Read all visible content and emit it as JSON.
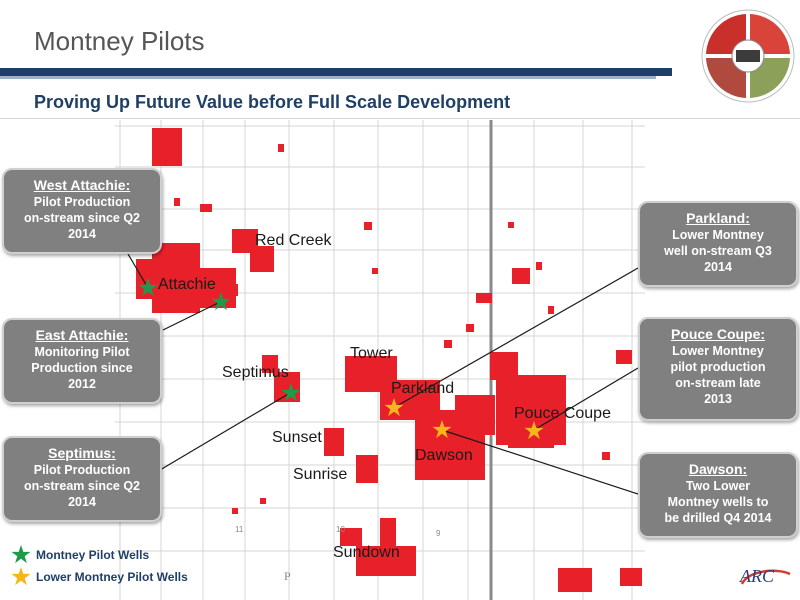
{
  "header": {
    "title": "Montney Pilots",
    "subtitle": "Proving Up Future Value before Full Scale Development"
  },
  "logo_wheel": {
    "colors": [
      "#c9302c",
      "#e8a24b",
      "#8da05a",
      "#b04a3e"
    ]
  },
  "map": {
    "labels": {
      "red_creek": "Red Creek",
      "attachie": "Attachie",
      "septimus": "Septimus",
      "tower": "Tower",
      "parkland": "Parkland",
      "pouce_coupe": "Pouce Coupe",
      "sunset": "Sunset",
      "dawson": "Dawson",
      "sunrise": "Sunrise",
      "sundown": "Sundown"
    },
    "grid_numbers": {
      "n11": "11",
      "n10": "10",
      "n9": "9",
      "p": "P"
    },
    "colors": {
      "land": "#e8202a",
      "grid": "#d6d6d6",
      "border": "#8a8a8a",
      "montney_pilot": "#1d9a4a",
      "lower_montney_pilot": "#f6b51a"
    }
  },
  "callouts": {
    "west_attachie": {
      "title": "West Attachie:",
      "lines": [
        "Pilot Production",
        "on-stream since Q2",
        "2014"
      ]
    },
    "east_attachie": {
      "title": "East Attachie:",
      "lines": [
        "Monitoring Pilot",
        "Production since",
        "2012"
      ]
    },
    "septimus": {
      "title": "Septimus:",
      "lines": [
        "Pilot Production",
        "on-stream since Q2",
        "2014"
      ]
    },
    "parkland": {
      "title": "Parkland:",
      "lines": [
        "Lower Montney",
        "well on-stream Q3",
        "2014"
      ]
    },
    "pouce_coupe": {
      "title": "Pouce Coupe:",
      "lines": [
        "Lower Montney",
        "pilot production",
        "on-stream late",
        "2013"
      ]
    },
    "dawson": {
      "title": "Dawson:",
      "lines": [
        "Two Lower",
        "Montney wells to",
        "be drilled Q4 2014"
      ]
    }
  },
  "legend": {
    "montney": "Montney Pilot Wells",
    "lower_montney": "Lower Montney Pilot Wells"
  },
  "footer": {
    "logo_text": "ARC"
  }
}
